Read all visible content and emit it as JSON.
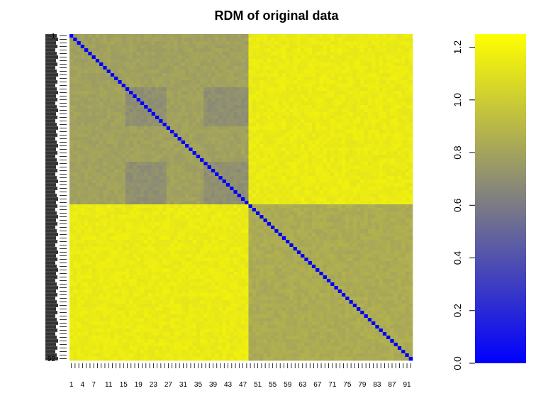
{
  "chart_data": {
    "type": "heatmap",
    "title": "RDM of original data",
    "n_conditions": 92,
    "rows_top_to_bottom": "1..92",
    "cols_left_to_right": "1..92",
    "block_boundary": 48,
    "blocks": [
      {
        "rows": [
          1,
          48
        ],
        "cols": [
          1,
          48
        ],
        "value": 0.79
      },
      {
        "rows": [
          1,
          48
        ],
        "cols": [
          49,
          92
        ],
        "value": 1.15
      },
      {
        "rows": [
          49,
          92
        ],
        "cols": [
          1,
          48
        ],
        "value": 1.15
      },
      {
        "rows": [
          49,
          92
        ],
        "cols": [
          49,
          92
        ],
        "value": 0.84
      },
      {
        "rows": [
          16,
          26
        ],
        "cols": [
          16,
          26
        ],
        "value": 0.7
      },
      {
        "rows": [
          16,
          26
        ],
        "cols": [
          37,
          48
        ],
        "value": 0.7
      },
      {
        "rows": [
          37,
          48
        ],
        "cols": [
          16,
          26
        ],
        "value": 0.7
      },
      {
        "rows": [
          37,
          48
        ],
        "cols": [
          37,
          48
        ],
        "value": 0.7
      }
    ],
    "diagonal_value": 0.0,
    "x_tick_labels": [
      "1",
      "4",
      "7",
      "11",
      "15",
      "19",
      "23",
      "27",
      "31",
      "35",
      "39",
      "43",
      "47",
      "51",
      "55",
      "59",
      "63",
      "67",
      "71",
      "75",
      "79",
      "83",
      "87",
      "91"
    ],
    "y_tick_labels": [
      "1",
      "92"
    ],
    "colorbar": {
      "min": 0.0,
      "max": 1.25,
      "ticks": [
        "0.0",
        "0.2",
        "0.4",
        "0.6",
        "0.8",
        "1.0",
        "1.2"
      ],
      "colors": [
        "#0000ff",
        "#808080",
        "#ffff00"
      ]
    },
    "grid": false,
    "legend": "right"
  }
}
